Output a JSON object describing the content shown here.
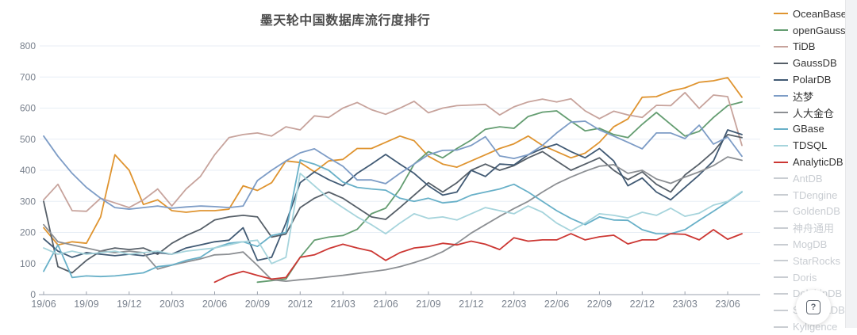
{
  "page": {
    "title": "墨天轮中国数据库流行度排行",
    "help_button": "?"
  },
  "chart_data": {
    "type": "line",
    "title": "墨天轮中国数据库流行度排行",
    "xlabel": "",
    "ylabel": "",
    "ylim": [
      0,
      800
    ],
    "y_ticks": [
      0,
      100,
      200,
      300,
      400,
      500,
      600,
      700,
      800
    ],
    "grid": "horizontal-only",
    "legend_position": "right",
    "x_start_month": "2019/06",
    "x_end_month": "2023/07",
    "x_tick_labels": [
      "19/06",
      "19/09",
      "19/12",
      "20/03",
      "20/06",
      "20/09",
      "20/12",
      "21/03",
      "21/06",
      "21/09",
      "21/12",
      "22/03",
      "22/06",
      "22/09",
      "22/12",
      "23/03",
      "23/06"
    ],
    "x_tick_every_n_points": 3,
    "series": [
      {
        "name": "OceanBase",
        "color": "#df9430",
        "enabled": true,
        "values": [
          215,
          160,
          170,
          165,
          250,
          450,
          400,
          290,
          305,
          270,
          265,
          270,
          270,
          275,
          350,
          335,
          360,
          430,
          425,
          395,
          430,
          435,
          470,
          470,
          490,
          510,
          495,
          445,
          420,
          410,
          430,
          450,
          470,
          485,
          510,
          480,
          460,
          440,
          455,
          490,
          540,
          565,
          635,
          637,
          655,
          665,
          683,
          688,
          698,
          635
        ]
      },
      {
        "name": "openGauss",
        "color": "#649d71",
        "enabled": true,
        "values": [
          null,
          null,
          null,
          null,
          null,
          null,
          null,
          null,
          null,
          null,
          null,
          null,
          null,
          null,
          null,
          40,
          45,
          50,
          120,
          175,
          185,
          190,
          210,
          260,
          278,
          340,
          420,
          460,
          440,
          470,
          497,
          532,
          540,
          535,
          573,
          587,
          591,
          558,
          527,
          535,
          515,
          505,
          548,
          586,
          548,
          510,
          525,
          570,
          608,
          620
        ]
      },
      {
        "name": "TiDB",
        "color": "#c7a39c",
        "enabled": true,
        "values": [
          305,
          355,
          270,
          268,
          310,
          295,
          280,
          305,
          340,
          285,
          340,
          380,
          450,
          505,
          515,
          520,
          510,
          540,
          530,
          575,
          570,
          600,
          618,
          595,
          580,
          600,
          622,
          585,
          600,
          608,
          610,
          612,
          578,
          604,
          620,
          629,
          620,
          630,
          591,
          566,
          590,
          578,
          570,
          609,
          608,
          650,
          599,
          642,
          637,
          480
        ]
      },
      {
        "name": "GaussDB",
        "color": "#565f68",
        "enabled": true,
        "values": [
          300,
          90,
          70,
          110,
          140,
          150,
          145,
          150,
          130,
          165,
          190,
          210,
          240,
          250,
          255,
          250,
          185,
          195,
          280,
          310,
          330,
          310,
          280,
          250,
          242,
          280,
          320,
          360,
          330,
          360,
          400,
          420,
          400,
          415,
          440,
          460,
          430,
          400,
          420,
          440,
          400,
          370,
          395,
          355,
          330,
          385,
          420,
          460,
          515,
          505
        ]
      },
      {
        "name": "PolarDB",
        "color": "#415a74",
        "enabled": true,
        "values": [
          180,
          140,
          120,
          135,
          130,
          125,
          130,
          125,
          135,
          130,
          150,
          160,
          170,
          175,
          215,
          110,
          120,
          230,
          360,
          395,
          370,
          350,
          390,
          420,
          451,
          420,
          390,
          350,
          320,
          330,
          400,
          380,
          420,
          417,
          450,
          470,
          484,
          460,
          440,
          470,
          430,
          350,
          375,
          330,
          305,
          345,
          385,
          430,
          530,
          515
        ]
      },
      {
        "name": "达梦",
        "color": "#7d9cc6",
        "enabled": true,
        "values": [
          510,
          445,
          390,
          345,
          310,
          280,
          275,
          280,
          285,
          278,
          282,
          285,
          283,
          280,
          285,
          367,
          400,
          430,
          456,
          469,
          440,
          413,
          369,
          369,
          357,
          390,
          420,
          450,
          464,
          465,
          480,
          508,
          446,
          438,
          450,
          480,
          520,
          555,
          558,
          530,
          510,
          490,
          469,
          520,
          520,
          502,
          545,
          484,
          507,
          445
        ]
      },
      {
        "name": "人大金仓",
        "color": "#8c8f93",
        "enabled": true,
        "values": [
          225,
          170,
          160,
          150,
          140,
          135,
          140,
          135,
          82,
          95,
          105,
          115,
          128,
          130,
          137,
          94,
          48,
          43,
          48,
          52,
          57,
          62,
          68,
          74,
          80,
          90,
          103,
          118,
          138,
          165,
          198,
          225,
          252,
          277,
          300,
          330,
          357,
          378,
          397,
          413,
          418,
          390,
          400,
          372,
          358,
          378,
          395,
          415,
          443,
          432
        ]
      },
      {
        "name": "GBase",
        "color": "#68b0c8",
        "enabled": true,
        "values": [
          75,
          160,
          55,
          60,
          58,
          60,
          65,
          70,
          90,
          95,
          110,
          120,
          150,
          165,
          170,
          155,
          190,
          200,
          433,
          420,
          400,
          362,
          345,
          340,
          336,
          310,
          300,
          310,
          295,
          300,
          320,
          330,
          340,
          355,
          330,
          300,
          270,
          245,
          225,
          250,
          240,
          239,
          209,
          196,
          196,
          209,
          239,
          268,
          298,
          330
        ]
      },
      {
        "name": "TDSQL",
        "color": "#a6d4dc",
        "enabled": true,
        "values": [
          150,
          130,
          140,
          130,
          135,
          140,
          130,
          135,
          140,
          130,
          140,
          145,
          150,
          160,
          170,
          175,
          100,
          120,
          390,
          350,
          310,
          280,
          250,
          225,
          196,
          230,
          260,
          245,
          250,
          240,
          260,
          280,
          270,
          260,
          285,
          265,
          230,
          205,
          230,
          260,
          255,
          247,
          265,
          255,
          278,
          252,
          262,
          288,
          300,
          332
        ]
      },
      {
        "name": "AnalyticDB",
        "color": "#cc3733",
        "enabled": true,
        "values": [
          null,
          null,
          null,
          null,
          null,
          null,
          null,
          null,
          null,
          null,
          null,
          null,
          40,
          62,
          75,
          62,
          50,
          55,
          120,
          128,
          148,
          162,
          150,
          140,
          110,
          135,
          150,
          155,
          165,
          160,
          172,
          162,
          145,
          183,
          172,
          176,
          176,
          196,
          176,
          186,
          191,
          163,
          176,
          176,
          196,
          194,
          176,
          209,
          178,
          196
        ]
      },
      {
        "name": "AntDB",
        "color": "#c9cdd2",
        "enabled": false,
        "values": []
      },
      {
        "name": "TDengine",
        "color": "#c9cdd2",
        "enabled": false,
        "values": []
      },
      {
        "name": "GoldenDB",
        "color": "#c9cdd2",
        "enabled": false,
        "values": []
      },
      {
        "name": "神舟通用",
        "color": "#c9cdd2",
        "enabled": false,
        "values": []
      },
      {
        "name": "MogDB",
        "color": "#c9cdd2",
        "enabled": false,
        "values": []
      },
      {
        "name": "StarRocks",
        "color": "#c9cdd2",
        "enabled": false,
        "values": []
      },
      {
        "name": "Doris",
        "color": "#c9cdd2",
        "enabled": false,
        "values": []
      },
      {
        "name": "DolphinDB",
        "color": "#c9cdd2",
        "enabled": false,
        "values": []
      },
      {
        "name": "SequoiaDB",
        "color": "#c9cdd2",
        "enabled": false,
        "values": []
      },
      {
        "name": "Kyligence",
        "color": "#c9cdd2",
        "enabled": false,
        "values": []
      }
    ],
    "style": {
      "gridline_color": "#e7eef5",
      "axis_line_color": "#9aa1ac",
      "tick_label_color": "#7a828e",
      "title_color": "#4d4d4d",
      "line_width": 1.8
    }
  }
}
